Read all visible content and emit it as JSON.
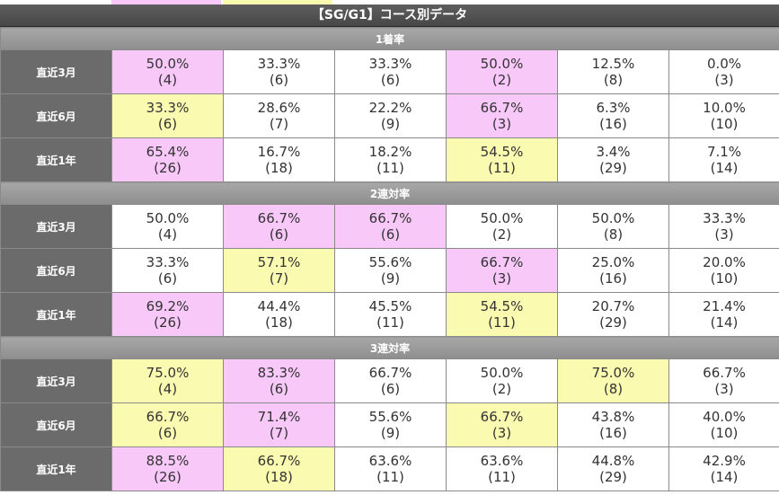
{
  "colors": {
    "pink": "#f8c8f8",
    "yellow": "#fafab0",
    "header": "#525252",
    "label": "#6b6b6b",
    "section": "#9d9d9d"
  },
  "title": "【SG/G1】コース別データ",
  "sections": [
    {
      "name": "1着率",
      "rows": [
        {
          "label": "直近3月",
          "cells": [
            {
              "pct": "50.0%",
              "count": "(4)",
              "hl": "pink"
            },
            {
              "pct": "33.3%",
              "count": "(6)",
              "hl": ""
            },
            {
              "pct": "33.3%",
              "count": "(6)",
              "hl": ""
            },
            {
              "pct": "50.0%",
              "count": "(2)",
              "hl": "pink"
            },
            {
              "pct": "12.5%",
              "count": "(8)",
              "hl": ""
            },
            {
              "pct": "0.0%",
              "count": "(3)",
              "hl": ""
            }
          ]
        },
        {
          "label": "直近6月",
          "cells": [
            {
              "pct": "33.3%",
              "count": "(6)",
              "hl": "yellow"
            },
            {
              "pct": "28.6%",
              "count": "(7)",
              "hl": ""
            },
            {
              "pct": "22.2%",
              "count": "(9)",
              "hl": ""
            },
            {
              "pct": "66.7%",
              "count": "(3)",
              "hl": "pink"
            },
            {
              "pct": "6.3%",
              "count": "(16)",
              "hl": ""
            },
            {
              "pct": "10.0%",
              "count": "(10)",
              "hl": ""
            }
          ]
        },
        {
          "label": "直近1年",
          "cells": [
            {
              "pct": "65.4%",
              "count": "(26)",
              "hl": "pink"
            },
            {
              "pct": "16.7%",
              "count": "(18)",
              "hl": ""
            },
            {
              "pct": "18.2%",
              "count": "(11)",
              "hl": ""
            },
            {
              "pct": "54.5%",
              "count": "(11)",
              "hl": "yellow"
            },
            {
              "pct": "3.4%",
              "count": "(29)",
              "hl": ""
            },
            {
              "pct": "7.1%",
              "count": "(14)",
              "hl": ""
            }
          ]
        }
      ]
    },
    {
      "name": "2連対率",
      "rows": [
        {
          "label": "直近3月",
          "cells": [
            {
              "pct": "50.0%",
              "count": "(4)",
              "hl": ""
            },
            {
              "pct": "66.7%",
              "count": "(6)",
              "hl": "pink"
            },
            {
              "pct": "66.7%",
              "count": "(6)",
              "hl": "pink"
            },
            {
              "pct": "50.0%",
              "count": "(2)",
              "hl": ""
            },
            {
              "pct": "50.0%",
              "count": "(8)",
              "hl": ""
            },
            {
              "pct": "33.3%",
              "count": "(3)",
              "hl": ""
            }
          ]
        },
        {
          "label": "直近6月",
          "cells": [
            {
              "pct": "33.3%",
              "count": "(6)",
              "hl": ""
            },
            {
              "pct": "57.1%",
              "count": "(7)",
              "hl": "yellow"
            },
            {
              "pct": "55.6%",
              "count": "(9)",
              "hl": ""
            },
            {
              "pct": "66.7%",
              "count": "(3)",
              "hl": "pink"
            },
            {
              "pct": "25.0%",
              "count": "(16)",
              "hl": ""
            },
            {
              "pct": "20.0%",
              "count": "(10)",
              "hl": ""
            }
          ]
        },
        {
          "label": "直近1年",
          "cells": [
            {
              "pct": "69.2%",
              "count": "(26)",
              "hl": "pink"
            },
            {
              "pct": "44.4%",
              "count": "(18)",
              "hl": ""
            },
            {
              "pct": "45.5%",
              "count": "(11)",
              "hl": ""
            },
            {
              "pct": "54.5%",
              "count": "(11)",
              "hl": "yellow"
            },
            {
              "pct": "20.7%",
              "count": "(29)",
              "hl": ""
            },
            {
              "pct": "21.4%",
              "count": "(14)",
              "hl": ""
            }
          ]
        }
      ]
    },
    {
      "name": "3連対率",
      "rows": [
        {
          "label": "直近3月",
          "cells": [
            {
              "pct": "75.0%",
              "count": "(4)",
              "hl": "yellow"
            },
            {
              "pct": "83.3%",
              "count": "(6)",
              "hl": "pink"
            },
            {
              "pct": "66.7%",
              "count": "(6)",
              "hl": ""
            },
            {
              "pct": "50.0%",
              "count": "(2)",
              "hl": ""
            },
            {
              "pct": "75.0%",
              "count": "(8)",
              "hl": "yellow"
            },
            {
              "pct": "66.7%",
              "count": "(3)",
              "hl": ""
            }
          ]
        },
        {
          "label": "直近6月",
          "cells": [
            {
              "pct": "66.7%",
              "count": "(6)",
              "hl": "yellow"
            },
            {
              "pct": "71.4%",
              "count": "(7)",
              "hl": "pink"
            },
            {
              "pct": "55.6%",
              "count": "(9)",
              "hl": ""
            },
            {
              "pct": "66.7%",
              "count": "(3)",
              "hl": "yellow"
            },
            {
              "pct": "43.8%",
              "count": "(16)",
              "hl": ""
            },
            {
              "pct": "40.0%",
              "count": "(10)",
              "hl": ""
            }
          ]
        },
        {
          "label": "直近1年",
          "cells": [
            {
              "pct": "88.5%",
              "count": "(26)",
              "hl": "pink"
            },
            {
              "pct": "66.7%",
              "count": "(18)",
              "hl": "yellow"
            },
            {
              "pct": "63.6%",
              "count": "(11)",
              "hl": ""
            },
            {
              "pct": "63.6%",
              "count": "(11)",
              "hl": ""
            },
            {
              "pct": "44.8%",
              "count": "(29)",
              "hl": ""
            },
            {
              "pct": "42.9%",
              "count": "(14)",
              "hl": ""
            }
          ]
        }
      ]
    }
  ]
}
